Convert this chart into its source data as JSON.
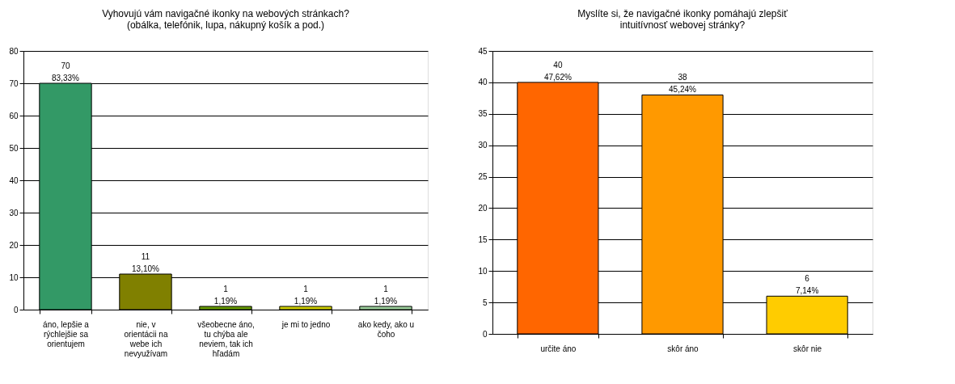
{
  "chart_data": [
    {
      "type": "bar",
      "title": "Vyhovujú vám navigačné ikonky na webových stránkach? (obálka, telefónik, lupa, nákupný košík a pod.)",
      "categories": [
        "áno, lepšie a rýchlejšie sa orientujem",
        "nie, v orientácii na webe ich nevyužívam",
        "všeobecne áno, tu chýba ale neviem, tak ich hľadám",
        "je mi to jedno",
        "ako kedy, ako u čoho"
      ],
      "values": [
        70,
        11,
        1,
        1,
        1
      ],
      "colors": [
        "#339966",
        "#808000",
        "#669900",
        "#cccc00",
        "#99cc99"
      ],
      "value_labels": [
        "70\n83,33%",
        "11\n13,10%",
        "1\n1,19%",
        "1\n1,19%",
        "1\n1,19%"
      ],
      "ylim": [
        0,
        80
      ],
      "yticks": [
        0,
        10,
        20,
        30,
        40,
        50,
        60,
        70,
        80
      ],
      "grid": "y"
    },
    {
      "type": "bar",
      "title": "Myslíte si, že navigačné ikonky pomáhajú zlepšiť intuitívnosť webovej stránky?",
      "categories": [
        "určite áno",
        "skôr áno",
        "skôr nie"
      ],
      "values": [
        40,
        38,
        6
      ],
      "colors": [
        "#ff6600",
        "#ff9900",
        "#ffcc00"
      ],
      "value_labels": [
        "40\n47,62%",
        "38\n45,24%",
        "6\n7,14%"
      ],
      "ylim": [
        0,
        45
      ],
      "yticks": [
        0,
        5,
        10,
        15,
        20,
        25,
        30,
        35,
        40,
        45
      ],
      "grid": "y"
    }
  ]
}
